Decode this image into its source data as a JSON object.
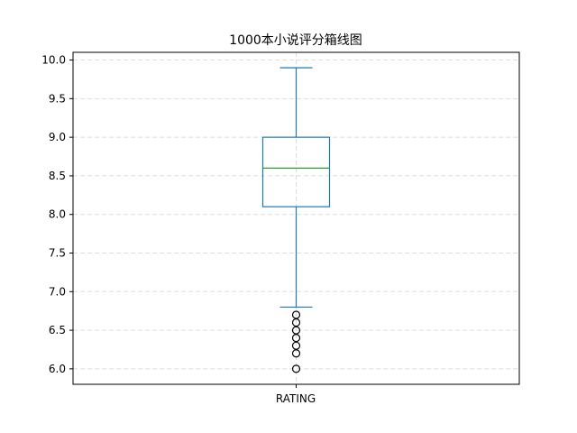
{
  "chart_data": {
    "type": "box",
    "title": "1000本小说评分箱线图",
    "categories": [
      "RATING"
    ],
    "ylim": [
      5.8,
      10.1
    ],
    "yticks": [
      6.0,
      6.5,
      7.0,
      7.5,
      8.0,
      8.5,
      9.0,
      9.5,
      10.0
    ],
    "ytick_labels": [
      "6.0",
      "6.5",
      "7.0",
      "7.5",
      "8.0",
      "8.5",
      "9.0",
      "9.5",
      "10.0"
    ],
    "grid": true,
    "box": {
      "whisker_low": 6.8,
      "q1": 8.1,
      "median": 8.6,
      "q3": 9.0,
      "whisker_high": 9.9,
      "outliers": [
        6.7,
        6.6,
        6.5,
        6.4,
        6.3,
        6.2,
        6.0
      ]
    },
    "colors": {
      "box": "#1f77b4",
      "median": "#2ca02c",
      "outlier": "#000000",
      "grid": "#dddddd"
    }
  }
}
